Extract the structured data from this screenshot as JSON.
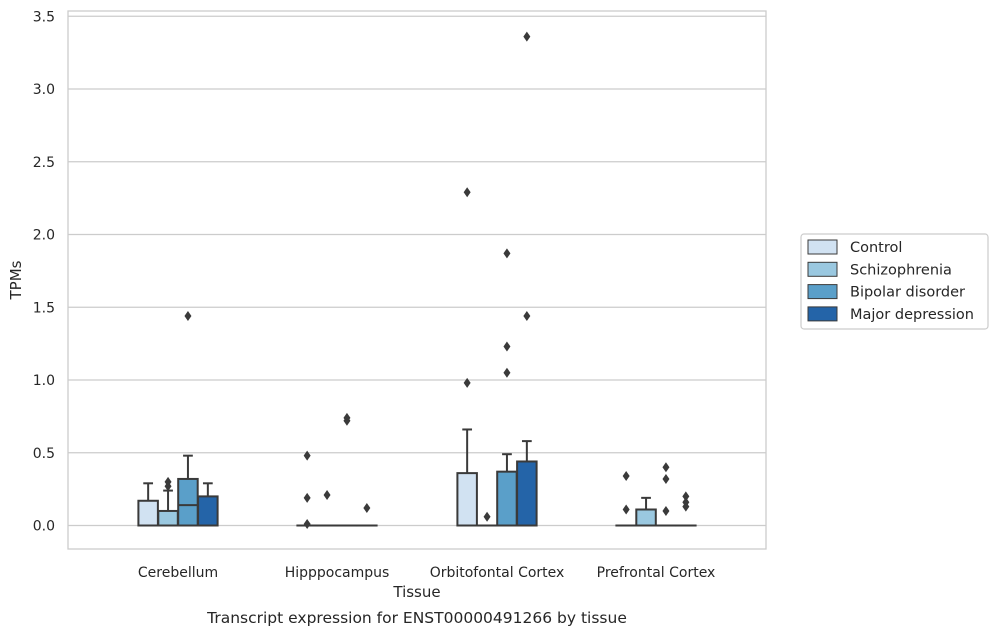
{
  "chart_data": {
    "type": "box",
    "title": "",
    "caption": "Transcript expression for ENST00000491266 by tissue",
    "xlabel": "Tissue",
    "ylabel": "TPMs",
    "ylim": [
      -0.16,
      3.55
    ],
    "yticks": [
      "0.0",
      "0.5",
      "1.0",
      "1.5",
      "2.0",
      "2.5",
      "3.0",
      "3.5"
    ],
    "ytick_values": [
      0.0,
      0.5,
      1.0,
      1.5,
      2.0,
      2.5,
      3.0,
      3.5
    ],
    "grid": true,
    "legend_position": "right",
    "categories": [
      "Cerebellum",
      "Hipppocampus",
      "Orbitofontal Cortex",
      "Prefrontal Cortex"
    ],
    "series": [
      {
        "name": "Control",
        "color": "#d1e2f2",
        "boxes": [
          {
            "q1": 0.0,
            "median": 0.0,
            "q3": 0.17,
            "whisker_low": 0.0,
            "whisker_high": 0.29,
            "outliers": []
          },
          {
            "q1": 0.0,
            "median": 0.0,
            "q3": 0.0,
            "whisker_low": 0.0,
            "whisker_high": 0.0,
            "outliers": [
              0.01,
              0.19,
              0.48
            ]
          },
          {
            "q1": 0.0,
            "median": 0.0,
            "q3": 0.36,
            "whisker_low": 0.0,
            "whisker_high": 0.66,
            "outliers": [
              0.98,
              2.29
            ]
          },
          {
            "q1": 0.0,
            "median": 0.0,
            "q3": 0.0,
            "whisker_low": 0.0,
            "whisker_high": 0.0,
            "outliers": [
              0.11,
              0.34
            ]
          }
        ]
      },
      {
        "name": "Schizophrenia",
        "color": "#9ac8e0",
        "boxes": [
          {
            "q1": 0.0,
            "median": 0.0,
            "q3": 0.1,
            "whisker_low": 0.0,
            "whisker_high": 0.24,
            "outliers": [
              0.27,
              0.3
            ]
          },
          {
            "q1": 0.0,
            "median": 0.0,
            "q3": 0.0,
            "whisker_low": 0.0,
            "whisker_high": 0.0,
            "outliers": [
              0.21
            ]
          },
          {
            "q1": 0.0,
            "median": 0.0,
            "q3": 0.0,
            "whisker_low": 0.0,
            "whisker_high": 0.0,
            "outliers": [
              0.06
            ]
          },
          {
            "q1": 0.0,
            "median": 0.0,
            "q3": 0.11,
            "whisker_low": 0.0,
            "whisker_high": 0.19,
            "outliers": []
          }
        ]
      },
      {
        "name": "Bipolar disorder",
        "color": "#5a9fc9",
        "boxes": [
          {
            "q1": 0.0,
            "median": 0.14,
            "q3": 0.32,
            "whisker_low": 0.0,
            "whisker_high": 0.48,
            "outliers": [
              1.44
            ]
          },
          {
            "q1": 0.0,
            "median": 0.0,
            "q3": 0.0,
            "whisker_low": 0.0,
            "whisker_high": 0.0,
            "outliers": [
              0.72,
              0.74
            ]
          },
          {
            "q1": 0.0,
            "median": 0.0,
            "q3": 0.37,
            "whisker_low": 0.0,
            "whisker_high": 0.49,
            "outliers": [
              1.05,
              1.23,
              1.87
            ]
          },
          {
            "q1": 0.0,
            "median": 0.0,
            "q3": 0.0,
            "whisker_low": 0.0,
            "whisker_high": 0.0,
            "outliers": [
              0.1,
              0.32,
              0.4
            ]
          }
        ]
      },
      {
        "name": "Major depression",
        "color": "#2464a8",
        "boxes": [
          {
            "q1": 0.0,
            "median": 0.0,
            "q3": 0.2,
            "whisker_low": 0.0,
            "whisker_high": 0.29,
            "outliers": []
          },
          {
            "q1": 0.0,
            "median": 0.0,
            "q3": 0.0,
            "whisker_low": 0.0,
            "whisker_high": 0.0,
            "outliers": [
              0.12
            ]
          },
          {
            "q1": 0.0,
            "median": 0.0,
            "q3": 0.44,
            "whisker_low": 0.0,
            "whisker_high": 0.58,
            "outliers": [
              1.44,
              3.36
            ]
          },
          {
            "q1": 0.0,
            "median": 0.0,
            "q3": 0.0,
            "whisker_low": 0.0,
            "whisker_high": 0.0,
            "outliers": [
              0.13,
              0.16,
              0.2
            ]
          }
        ]
      }
    ]
  }
}
